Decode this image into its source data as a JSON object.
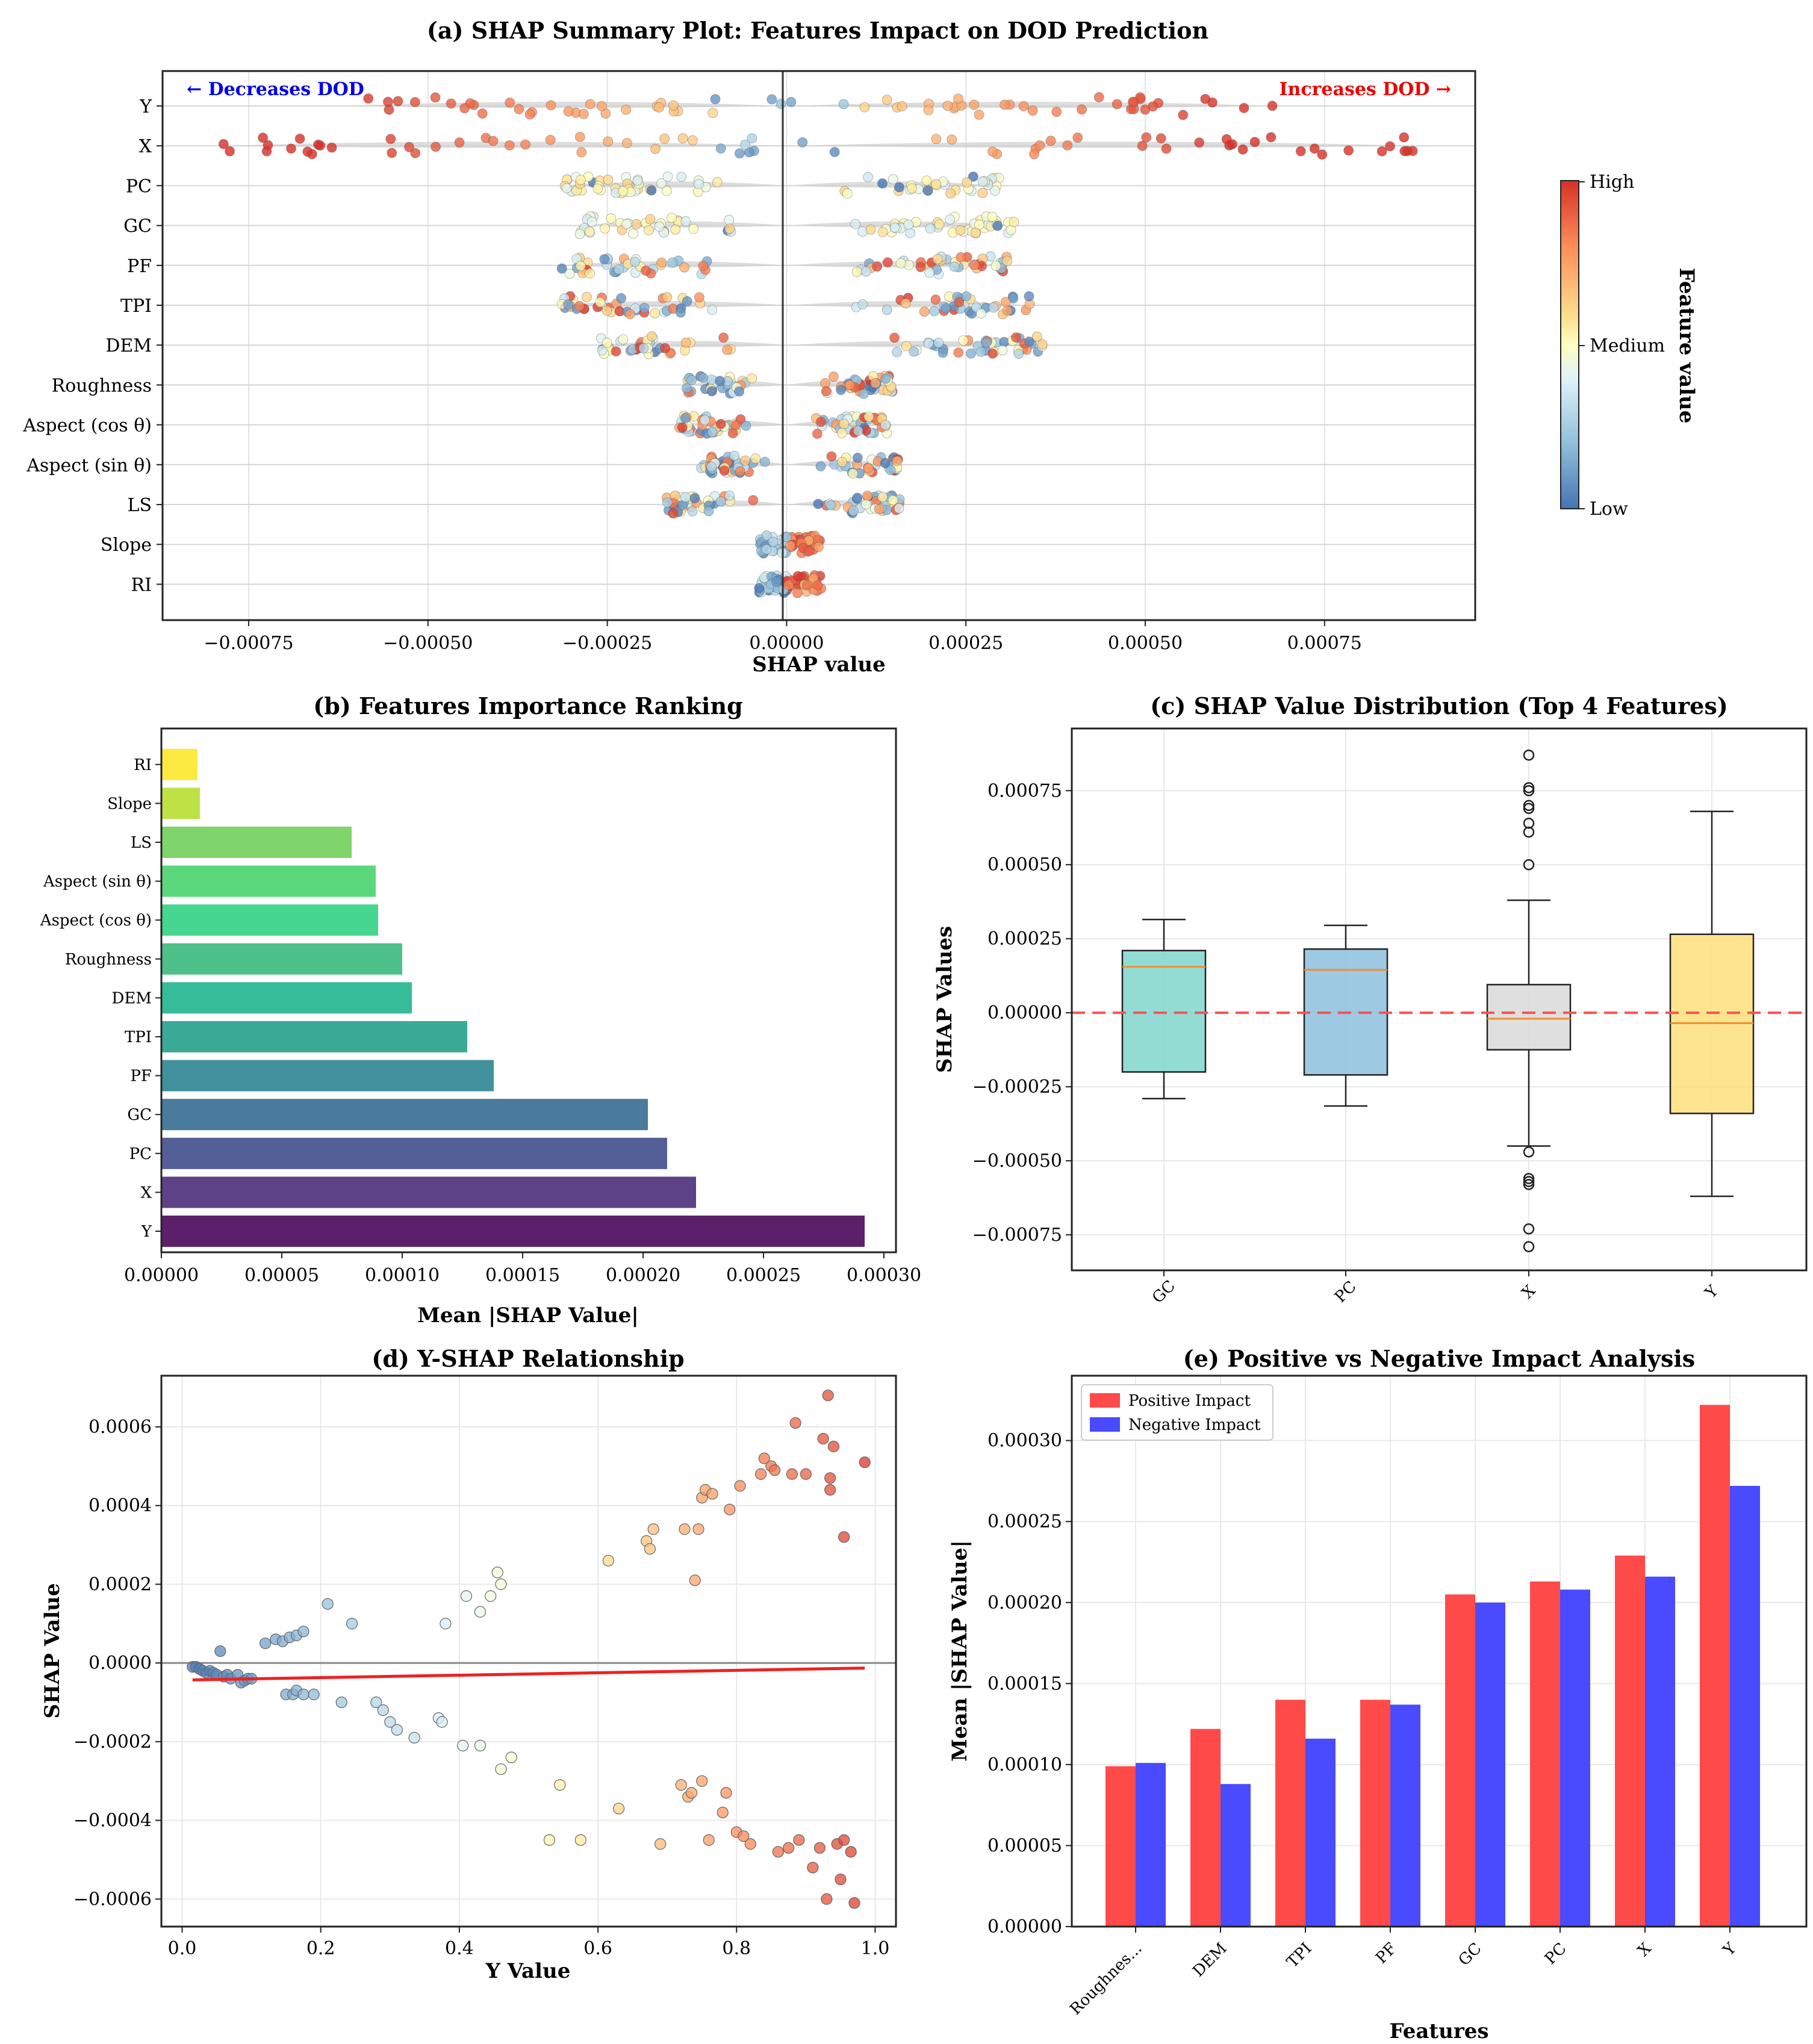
{
  "chart_data": [
    {
      "id": "a",
      "type": "scatter",
      "title": "(a) SHAP Summary Plot: Features Impact on DOD Prediction",
      "xlabel": "SHAP value",
      "ylabel": "",
      "xlim": [
        -0.00087,
        0.00096
      ],
      "xticks": [
        -0.00075,
        -0.0005,
        -0.00025,
        0.0,
        0.00025,
        0.0005,
        0.00075
      ],
      "xtick_labels": [
        "−0.00075",
        "−0.00050",
        "−0.00025",
        "0.00000",
        "0.00025",
        "0.00050",
        "0.00075"
      ],
      "features": [
        "Y",
        "X",
        "PC",
        "GC",
        "PF",
        "TPI",
        "DEM",
        "Roughness",
        "Aspect (cos θ)",
        "Aspect (sin θ)",
        "LS",
        "Slope",
        "RI"
      ],
      "shap_ranges": [
        {
          "feature": "Y",
          "min": -0.00062,
          "max": 0.00068
        },
        {
          "feature": "X",
          "min": -0.00079,
          "max": 0.00088
        },
        {
          "feature": "PC",
          "min": -0.00032,
          "max": 0.0003
        },
        {
          "feature": "GC",
          "min": -0.00029,
          "max": 0.00032
        },
        {
          "feature": "PF",
          "min": -0.00032,
          "max": 0.00031
        },
        {
          "feature": "TPI",
          "min": -0.00033,
          "max": 0.00034
        },
        {
          "feature": "DEM",
          "min": -0.00026,
          "max": 0.00037
        },
        {
          "feature": "Roughness",
          "min": -0.00014,
          "max": 0.00015
        },
        {
          "feature": "Aspect (cos θ)",
          "min": -0.00015,
          "max": 0.00014
        },
        {
          "feature": "Aspect (sin θ)",
          "min": -0.00012,
          "max": 0.00016
        },
        {
          "feature": "LS",
          "min": -0.00017,
          "max": 0.00016
        },
        {
          "feature": "Slope",
          "min": -4e-05,
          "max": 5e-05
        },
        {
          "feature": "RI",
          "min": -4e-05,
          "max": 5e-05
        }
      ],
      "annotations": [
        "← Decreases DOD",
        "Increases DOD →"
      ],
      "colorbar": {
        "label": "Feature value",
        "ticks": [
          "High",
          "Medium",
          "Low"
        ],
        "colors": [
          "#d73027",
          "#fc8d59",
          "#fee090",
          "#ffffbf",
          "#e0f3f8",
          "#91bfdb",
          "#4575b4"
        ]
      }
    },
    {
      "id": "b",
      "type": "bar",
      "orientation": "horizontal",
      "title": "(b) Features Importance Ranking",
      "xlabel": "Mean |SHAP Value|",
      "ylabel": "",
      "xlim": [
        0,
        0.000305
      ],
      "xticks": [
        0.0,
        5e-05,
        0.0001,
        0.00015,
        0.0002,
        0.00025,
        0.0003
      ],
      "xtick_labels": [
        "0.00000",
        "0.00005",
        "0.00010",
        "0.00015",
        "0.00020",
        "0.00025",
        "0.00030"
      ],
      "categories": [
        "Y",
        "X",
        "PC",
        "GC",
        "PF",
        "TPI",
        "DEM",
        "Roughness",
        "Aspect (cos θ)",
        "Aspect (sin θ)",
        "LS",
        "Slope",
        "RI"
      ],
      "values": [
        0.000292,
        0.000222,
        0.00021,
        0.000202,
        0.000138,
        0.000127,
        0.000104,
        0.0001,
        9e-05,
        8.9e-05,
        7.9e-05,
        1.6e-05,
        1.5e-05
      ],
      "colors": [
        "#440154",
        "#482878",
        "#3e4989",
        "#31688e",
        "#26828e",
        "#1f9e89",
        "#1ab38a",
        "#35b779",
        "#2ed080",
        "#45d36a",
        "#6ece58",
        "#b5de2b",
        "#fde725"
      ]
    },
    {
      "id": "c",
      "type": "box",
      "title": "(c) SHAP Value Distribution (Top 4 Features)",
      "xlabel": "",
      "ylabel": "SHAP Values",
      "ylim": [
        -0.00087,
        0.00096
      ],
      "yticks": [
        -0.00075,
        -0.0005,
        -0.00025,
        0.0,
        0.00025,
        0.0005,
        0.00075
      ],
      "ytick_labels": [
        "−0.00075",
        "−0.00050",
        "−0.00025",
        "0.00000",
        "0.00025",
        "0.00050",
        "0.00075"
      ],
      "categories": [
        "GC",
        "PC",
        "X",
        "Y"
      ],
      "boxes": [
        {
          "name": "GC",
          "whisker_low": -0.00029,
          "q1": -0.0002,
          "median": 0.000155,
          "q3": 0.00021,
          "whisker_high": 0.000315,
          "outliers": [],
          "color": "#7fd6cc"
        },
        {
          "name": "PC",
          "whisker_low": -0.000315,
          "q1": -0.00021,
          "median": 0.000145,
          "q3": 0.000215,
          "whisker_high": 0.000295,
          "outliers": [],
          "color": "#8dc0dd"
        },
        {
          "name": "X",
          "whisker_low": -0.00045,
          "q1": -0.000125,
          "median": -2e-05,
          "q3": 9.5e-05,
          "whisker_high": 0.00038,
          "outliers": [
            0.00087,
            0.00076,
            0.00075,
            0.0007,
            0.00069,
            0.00064,
            0.00061,
            0.0005,
            -0.00047,
            -0.00056,
            -0.00057,
            -0.00058,
            -0.00073,
            -0.00079
          ],
          "color": "#d9d9d9"
        },
        {
          "name": "Y",
          "whisker_low": -0.00062,
          "q1": -0.00034,
          "median": -3.5e-05,
          "q3": 0.000265,
          "whisker_high": 0.00068,
          "outliers": [],
          "color": "#fbe07a"
        }
      ],
      "reference_line": 0.0
    },
    {
      "id": "d",
      "type": "scatter",
      "title": "(d) Y-SHAP Relationship",
      "xlabel": "Y Value",
      "ylabel": "SHAP Value",
      "xlim": [
        -0.03,
        1.03
      ],
      "ylim": [
        -0.00067,
        0.00073
      ],
      "xticks": [
        0.0,
        0.2,
        0.4,
        0.6,
        0.8,
        1.0
      ],
      "xtick_labels": [
        "0.0",
        "0.2",
        "0.4",
        "0.6",
        "0.8",
        "1.0"
      ],
      "yticks": [
        -0.0006,
        -0.0004,
        -0.0002,
        0.0,
        0.0002,
        0.0004,
        0.0006
      ],
      "ytick_labels": [
        "−0.0006",
        "−0.0004",
        "−0.0002",
        "0.0000",
        "0.0002",
        "0.0004",
        "0.0006"
      ],
      "points": [
        [
          0.015,
          -1e-05
        ],
        [
          0.02,
          -1e-05
        ],
        [
          0.025,
          -1.5e-05
        ],
        [
          0.03,
          -2e-05
        ],
        [
          0.035,
          -2.5e-05
        ],
        [
          0.04,
          -2e-05
        ],
        [
          0.045,
          -2.5e-05
        ],
        [
          0.05,
          -3e-05
        ],
        [
          0.055,
          3e-05
        ],
        [
          0.06,
          -3.5e-05
        ],
        [
          0.065,
          -3e-05
        ],
        [
          0.07,
          -4e-05
        ],
        [
          0.08,
          -3e-05
        ],
        [
          0.085,
          -5e-05
        ],
        [
          0.09,
          -4.5e-05
        ],
        [
          0.095,
          -4e-05
        ],
        [
          0.1,
          -4e-05
        ],
        [
          0.12,
          5e-05
        ],
        [
          0.135,
          6e-05
        ],
        [
          0.145,
          5.5e-05
        ],
        [
          0.155,
          6.5e-05
        ],
        [
          0.165,
          7e-05
        ],
        [
          0.175,
          8e-05
        ],
        [
          0.21,
          0.00015
        ],
        [
          0.245,
          0.0001
        ],
        [
          0.15,
          -8e-05
        ],
        [
          0.16,
          -8e-05
        ],
        [
          0.165,
          -7e-05
        ],
        [
          0.175,
          -8e-05
        ],
        [
          0.19,
          -8e-05
        ],
        [
          0.23,
          -0.0001
        ],
        [
          0.28,
          -0.0001
        ],
        [
          0.29,
          -0.00012
        ],
        [
          0.3,
          -0.00015
        ],
        [
          0.31,
          -0.00017
        ],
        [
          0.335,
          -0.00019
        ],
        [
          0.37,
          -0.00014
        ],
        [
          0.375,
          -0.00015
        ],
        [
          0.405,
          -0.00021
        ],
        [
          0.43,
          -0.00021
        ],
        [
          0.46,
          -0.00027
        ],
        [
          0.475,
          -0.00024
        ],
        [
          0.38,
          0.0001
        ],
        [
          0.41,
          0.00017
        ],
        [
          0.43,
          0.00013
        ],
        [
          0.445,
          0.00017
        ],
        [
          0.455,
          0.00023
        ],
        [
          0.46,
          0.0002
        ],
        [
          0.53,
          -0.00045
        ],
        [
          0.545,
          -0.00031
        ],
        [
          0.575,
          -0.00045
        ],
        [
          0.615,
          0.00026
        ],
        [
          0.63,
          -0.00037
        ],
        [
          0.67,
          0.00031
        ],
        [
          0.675,
          0.00029
        ],
        [
          0.68,
          0.00034
        ],
        [
          0.69,
          -0.00046
        ],
        [
          0.72,
          -0.00031
        ],
        [
          0.725,
          0.00034
        ],
        [
          0.73,
          -0.00034
        ],
        [
          0.735,
          -0.00033
        ],
        [
          0.74,
          0.00021
        ],
        [
          0.745,
          0.00034
        ],
        [
          0.75,
          0.00042
        ],
        [
          0.755,
          0.00044
        ],
        [
          0.76,
          -0.00045
        ],
        [
          0.765,
          0.00043
        ],
        [
          0.75,
          -0.0003
        ],
        [
          0.78,
          -0.00038
        ],
        [
          0.785,
          -0.00033
        ],
        [
          0.79,
          0.00039
        ],
        [
          0.8,
          -0.00043
        ],
        [
          0.805,
          0.00045
        ],
        [
          0.81,
          -0.00044
        ],
        [
          0.82,
          -0.00046
        ],
        [
          0.835,
          0.00048
        ],
        [
          0.84,
          0.00052
        ],
        [
          0.85,
          0.0005
        ],
        [
          0.855,
          0.00049
        ],
        [
          0.86,
          -0.00048
        ],
        [
          0.875,
          -0.00047
        ],
        [
          0.88,
          0.00048
        ],
        [
          0.885,
          0.00061
        ],
        [
          0.89,
          -0.00045
        ],
        [
          0.9,
          0.00048
        ],
        [
          0.91,
          -0.00052
        ],
        [
          0.92,
          -0.00047
        ],
        [
          0.925,
          0.00057
        ],
        [
          0.93,
          -0.0006
        ],
        [
          0.932,
          0.00068
        ],
        [
          0.935,
          0.00047
        ],
        [
          0.935,
          0.00044
        ],
        [
          0.94,
          0.00055
        ],
        [
          0.945,
          -0.00046
        ],
        [
          0.95,
          -0.00055
        ],
        [
          0.955,
          -0.00045
        ],
        [
          0.955,
          0.00032
        ],
        [
          0.965,
          -0.00048
        ],
        [
          0.97,
          -0.00061
        ],
        [
          0.985,
          0.00051
        ]
      ],
      "trend_line": [
        [
          0.015,
          -4.3e-05
        ],
        [
          0.985,
          -1.3e-05
        ]
      ]
    },
    {
      "id": "e",
      "type": "bar",
      "title": "(e) Positive vs Negative Impact Analysis",
      "xlabel": "Features",
      "ylabel": "Mean |SHAP Value|",
      "ylim": [
        0,
        0.00034
      ],
      "yticks": [
        0.0,
        5e-05,
        0.0001,
        0.00015,
        0.0002,
        0.00025,
        0.0003
      ],
      "ytick_labels": [
        "0.00000",
        "0.00005",
        "0.00010",
        "0.00015",
        "0.00020",
        "0.00025",
        "0.00030"
      ],
      "categories": [
        "Roughnes...",
        "DEM",
        "TPI",
        "PF",
        "GC",
        "PC",
        "X",
        "Y"
      ],
      "series": [
        {
          "name": "Positive Impact",
          "color": "#ff4a4a",
          "values": [
            9.9e-05,
            0.000122,
            0.00014,
            0.00014,
            0.000205,
            0.000213,
            0.000229,
            0.000322
          ]
        },
        {
          "name": "Negative Impact",
          "color": "#4a4aff",
          "values": [
            0.000101,
            8.8e-05,
            0.000116,
            0.000137,
            0.0002,
            0.000208,
            0.000216,
            0.000272
          ]
        }
      ]
    }
  ]
}
